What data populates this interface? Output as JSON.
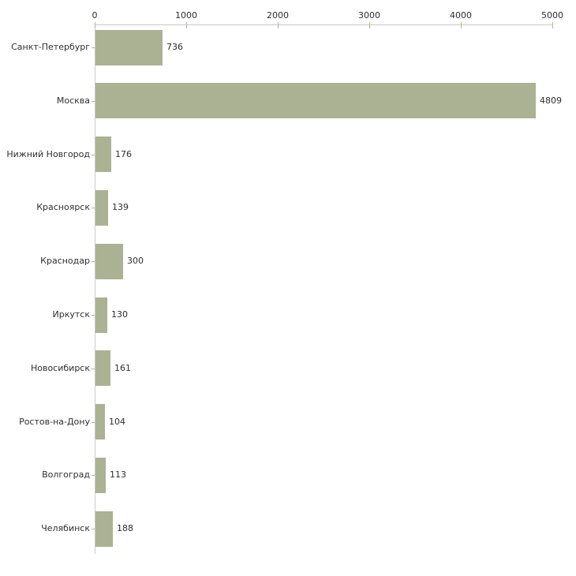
{
  "chart_data": {
    "type": "bar",
    "orientation": "horizontal",
    "title": "",
    "xlabel": "",
    "ylabel": "",
    "categories": [
      "Санкт-Петербург",
      "Москва",
      "Нижний Новгород",
      "Красноярск",
      "Краснодар",
      "Иркутск",
      "Новосибирск",
      "Ростов-на-Дону",
      "Волгоград",
      "Челябинск"
    ],
    "values": [
      736,
      4809,
      176,
      139,
      300,
      130,
      161,
      104,
      113,
      188
    ],
    "value_labels": [
      "736",
      "4809",
      "176",
      "139",
      "300",
      "130",
      "161",
      "104",
      "113",
      "188"
    ],
    "xlim": [
      0,
      5000
    ],
    "x_ticks": [
      0,
      1000,
      2000,
      3000,
      4000,
      5000
    ],
    "x_tick_labels": [
      "0",
      "1000",
      "2000",
      "3000",
      "4000",
      "5000"
    ],
    "grid": false,
    "legend": false,
    "colors": {
      "bar_fill": "#abb294",
      "axis_line": "#c9c9c9",
      "tick_mark": "#b4b58e",
      "text": "#2e2e2e",
      "background": "#ffffff"
    }
  }
}
